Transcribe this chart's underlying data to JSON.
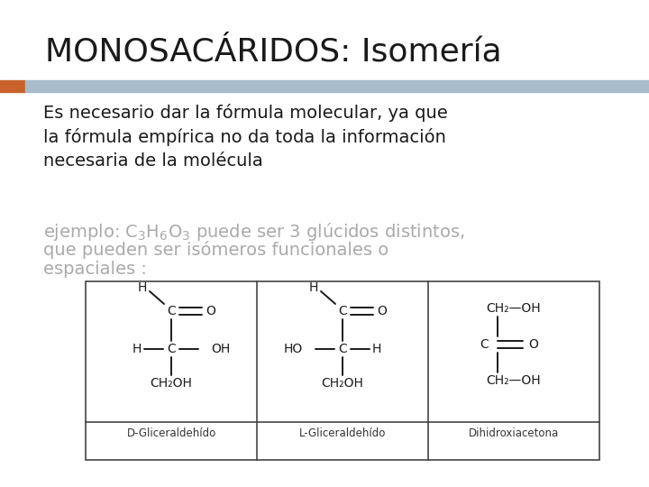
{
  "title": "MONOSACÁRIDOS: Isomería",
  "title_fontsize": 26,
  "title_color": "#1a1a1a",
  "title_bold": false,
  "header_bar_color": "#a8bccb",
  "header_orange_color": "#c8612a",
  "bg_color": "#ffffff",
  "paragraph1": "Es necesario dar la fórmula molecular, ya que\nla fórmula empírica no da toda la información\nnecesaria de la molécula",
  "paragraph1_fontsize": 14,
  "paragraph1_color": "#1a1a1a",
  "paragraph2_line1": "ejemplo: $\\mathregular{C_3H_6O_3}$ puede ser 3 glúcidos distintos,",
  "paragraph2_line2": "que pueden ser isómeros funcionales o",
  "paragraph2_line3": "espaciales :",
  "paragraph2_fontsize": 14,
  "paragraph2_color": "#aaaaaa",
  "label1": "D-Gliceraldehído",
  "label2": "L-Gliceraldehído",
  "label3": "Dihidroxiacetona",
  "label_fontsize": 8.5,
  "table_border_color": "#444444"
}
